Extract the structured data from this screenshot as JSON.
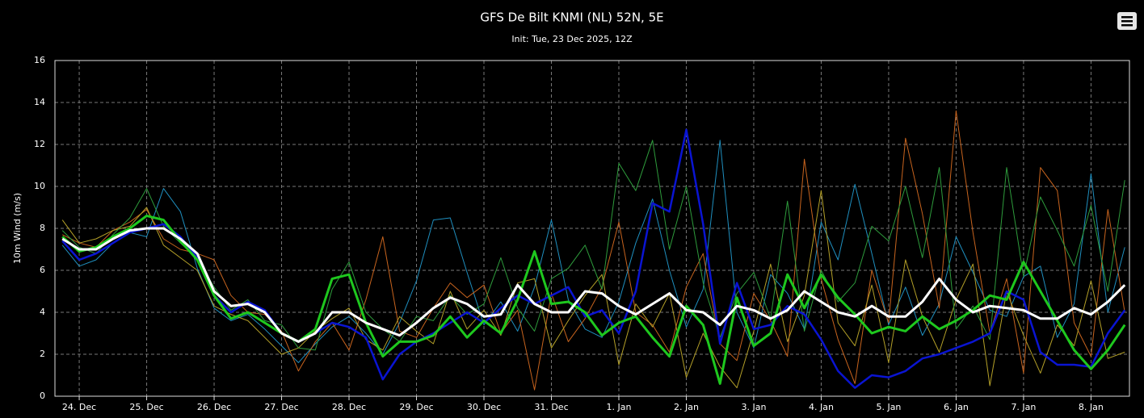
{
  "chart_data": {
    "type": "line",
    "title": "GFS De Bilt KNMI (NL) 52N, 5E",
    "subtitle": "Init: Tue, 23 Dec 2025, 12Z",
    "y_label": "10m Wind (m/s)",
    "xlim": [
      -0.36,
      15.57
    ],
    "xticks": [
      {
        "value": 0,
        "label": "24. Dec"
      },
      {
        "value": 1,
        "label": "25. Dec"
      },
      {
        "value": 2,
        "label": "26. Dec"
      },
      {
        "value": 3,
        "label": "27. Dec"
      },
      {
        "value": 4,
        "label": "28. Dec"
      },
      {
        "value": 5,
        "label": "29. Dec"
      },
      {
        "value": 6,
        "label": "30. Dec"
      },
      {
        "value": 7,
        "label": "31. Dec"
      },
      {
        "value": 8,
        "label": "1. Jan"
      },
      {
        "value": 9,
        "label": "2. Jan"
      },
      {
        "value": 10,
        "label": "3. Jan"
      },
      {
        "value": 11,
        "label": "4. Jan"
      },
      {
        "value": 12,
        "label": "5. Jan"
      },
      {
        "value": 13,
        "label": "6. Jan"
      },
      {
        "value": 14,
        "label": "7. Jan"
      },
      {
        "value": 15,
        "label": "8. Jan"
      }
    ],
    "ylim": [
      0,
      16
    ],
    "yticks": [
      0,
      2,
      4,
      6,
      8,
      10,
      12,
      14,
      16
    ],
    "grid": true,
    "x": [
      -0.25,
      0,
      0.25,
      0.5,
      0.75,
      1,
      1.25,
      1.5,
      1.75,
      2,
      2.25,
      2.5,
      2.75,
      3,
      3.25,
      3.5,
      3.75,
      4,
      4.25,
      4.5,
      4.75,
      5,
      5.25,
      5.5,
      5.75,
      6,
      6.25,
      6.5,
      6.75,
      7,
      7.25,
      7.5,
      7.75,
      8,
      8.25,
      8.5,
      8.75,
      9,
      9.25,
      9.5,
      9.75,
      10,
      10.25,
      10.5,
      10.75,
      11,
      11.25,
      11.5,
      11.75,
      12,
      12.25,
      12.5,
      12.75,
      13,
      13.25,
      13.5,
      13.75,
      14,
      14.25,
      14.5,
      14.75,
      15,
      15.25,
      15.5
    ],
    "series": [
      {
        "color": "#1f8fbf",
        "width": 1,
        "values": [
          7.2,
          6.2,
          6.5,
          7.3,
          7.8,
          7.6,
          9.9,
          8.8,
          6.1,
          4.2,
          3.6,
          3.9,
          3.2,
          2.4,
          1.6,
          2.5,
          3.3,
          3.8,
          3.0,
          2.0,
          3.5,
          5.5,
          8.4,
          8.5,
          5.9,
          3.4,
          4.5,
          3.1,
          5.2,
          8.4,
          4.6,
          3.2,
          2.8,
          4.5,
          7.3,
          9.4,
          6.0,
          3.3,
          5.1,
          12.2,
          4.0,
          2.3,
          5.8,
          4.9,
          3.2,
          8.3,
          6.5,
          10.1,
          6.8,
          3.4,
          5.2,
          2.9,
          4.4,
          7.6,
          5.9,
          4.1,
          3.8,
          5.7,
          6.2,
          2.8,
          4.4,
          10.6,
          4.0,
          7.1
        ]
      },
      {
        "color": "#c8641e",
        "width": 1,
        "values": [
          7.7,
          7.3,
          7.1,
          7.9,
          8.3,
          8.9,
          7.5,
          7.0,
          6.8,
          6.5,
          4.8,
          4.0,
          3.9,
          3.1,
          1.2,
          2.6,
          3.5,
          2.2,
          4.6,
          7.6,
          3.1,
          2.8,
          4.2,
          5.4,
          4.7,
          5.3,
          3.0,
          4.1,
          0.3,
          4.9,
          2.6,
          3.7,
          5.2,
          8.3,
          4.0,
          3.4,
          2.1,
          5.2,
          6.8,
          2.5,
          1.7,
          4.9,
          3.6,
          1.9,
          11.3,
          5.6,
          2.7,
          0.6,
          6.0,
          3.5,
          12.3,
          8.7,
          4.2,
          13.6,
          7.8,
          3.0,
          5.6,
          1.1,
          10.9,
          9.8,
          3.5,
          1.9,
          8.9,
          4.0
        ]
      },
      {
        "color": "#b4a028",
        "width": 1,
        "values": [
          8.4,
          7.3,
          7.5,
          7.9,
          8.1,
          9.0,
          7.2,
          6.6,
          6.0,
          4.3,
          3.9,
          3.6,
          2.8,
          2.0,
          2.3,
          3.1,
          3.7,
          4.2,
          2.7,
          2.2,
          3.8,
          3.1,
          2.5,
          5.0,
          3.2,
          4.1,
          2.9,
          5.4,
          5.6,
          2.3,
          3.6,
          4.8,
          5.8,
          1.5,
          4.4,
          3.3,
          4.9,
          0.9,
          3.0,
          1.4,
          0.4,
          3.1,
          6.3,
          2.6,
          4.8,
          9.8,
          3.5,
          2.4,
          5.3,
          1.6,
          6.5,
          3.8,
          2.1,
          4.6,
          6.3,
          0.5,
          5.0,
          2.9,
          1.1,
          3.4,
          2.4,
          5.5,
          1.8,
          2.1
        ]
      },
      {
        "color": "#2e9c3c",
        "width": 1,
        "values": [
          7.9,
          7.1,
          6.8,
          7.7,
          8.5,
          9.9,
          8.1,
          7.3,
          6.6,
          5.2,
          4.1,
          4.6,
          3.6,
          3.4,
          2.3,
          2.2,
          5.1,
          6.4,
          4.0,
          3.2,
          2.6,
          3.8,
          3.6,
          4.8,
          3.9,
          4.4,
          6.6,
          4.2,
          3.1,
          5.6,
          6.1,
          7.2,
          5.1,
          11.1,
          9.8,
          12.2,
          7.0,
          10.0,
          5.4,
          2.8,
          4.9,
          5.9,
          3.7,
          9.3,
          3.1,
          6.0,
          4.5,
          5.4,
          8.1,
          7.4,
          10.0,
          6.6,
          10.9,
          3.2,
          4.3,
          2.7,
          10.9,
          5.7,
          9.5,
          7.9,
          6.2,
          9.1,
          5.0,
          10.3
        ]
      },
      {
        "color": "#0a14d2",
        "width": 2.5,
        "values": [
          7.4,
          6.5,
          6.8,
          7.3,
          7.8,
          8.0,
          8.2,
          7.6,
          6.6,
          4.8,
          4.0,
          4.5,
          4.1,
          3.0,
          2.6,
          3.0,
          3.5,
          3.3,
          2.8,
          0.8,
          2.0,
          2.6,
          3.0,
          3.5,
          4.0,
          3.5,
          4.2,
          4.8,
          4.4,
          4.8,
          5.2,
          3.8,
          4.1,
          3.0,
          5.0,
          9.2,
          8.8,
          12.7,
          8.2,
          2.5,
          5.4,
          3.2,
          3.4,
          4.3,
          3.9,
          2.7,
          1.2,
          0.4,
          1.0,
          0.9,
          1.2,
          1.8,
          2.0,
          2.3,
          2.6,
          3.0,
          5.0,
          4.6,
          2.1,
          1.5,
          1.5,
          1.4,
          3.0,
          4.1
        ]
      },
      {
        "color": "#1ec81e",
        "width": 3,
        "values": [
          7.6,
          6.9,
          7.1,
          7.6,
          8.0,
          8.6,
          8.4,
          7.4,
          6.5,
          4.8,
          3.7,
          4.0,
          3.5,
          3.0,
          2.6,
          3.2,
          5.6,
          5.8,
          3.5,
          1.9,
          2.6,
          2.6,
          2.9,
          3.8,
          2.8,
          3.6,
          3.0,
          4.6,
          6.9,
          4.4,
          4.5,
          4.0,
          2.9,
          3.5,
          3.8,
          2.8,
          1.9,
          4.3,
          3.4,
          0.6,
          4.7,
          2.4,
          3.0,
          5.8,
          4.2,
          5.8,
          4.7,
          3.9,
          3.0,
          3.3,
          3.1,
          3.8,
          3.2,
          3.6,
          4.1,
          4.8,
          4.6,
          6.4,
          5.0,
          3.6,
          2.2,
          1.3,
          2.2,
          3.4
        ]
      },
      {
        "color": "#ffffff",
        "width": 3,
        "values": [
          7.5,
          7.0,
          7.0,
          7.5,
          7.9,
          8.0,
          8.0,
          7.5,
          6.8,
          5.0,
          4.3,
          4.4,
          4.0,
          3.0,
          2.6,
          3.0,
          4.0,
          4.0,
          3.5,
          3.2,
          2.9,
          3.5,
          4.2,
          4.7,
          4.4,
          3.8,
          3.9,
          5.3,
          4.4,
          4.0,
          4.0,
          5.0,
          4.9,
          4.3,
          3.9,
          4.4,
          4.9,
          4.1,
          4.0,
          3.4,
          4.3,
          4.1,
          3.7,
          4.1,
          5.0,
          4.5,
          4.0,
          3.8,
          4.3,
          3.8,
          3.8,
          4.5,
          5.6,
          4.6,
          4.0,
          4.3,
          4.2,
          4.1,
          3.7,
          3.7,
          4.2,
          3.9,
          4.5,
          5.3
        ]
      }
    ]
  }
}
